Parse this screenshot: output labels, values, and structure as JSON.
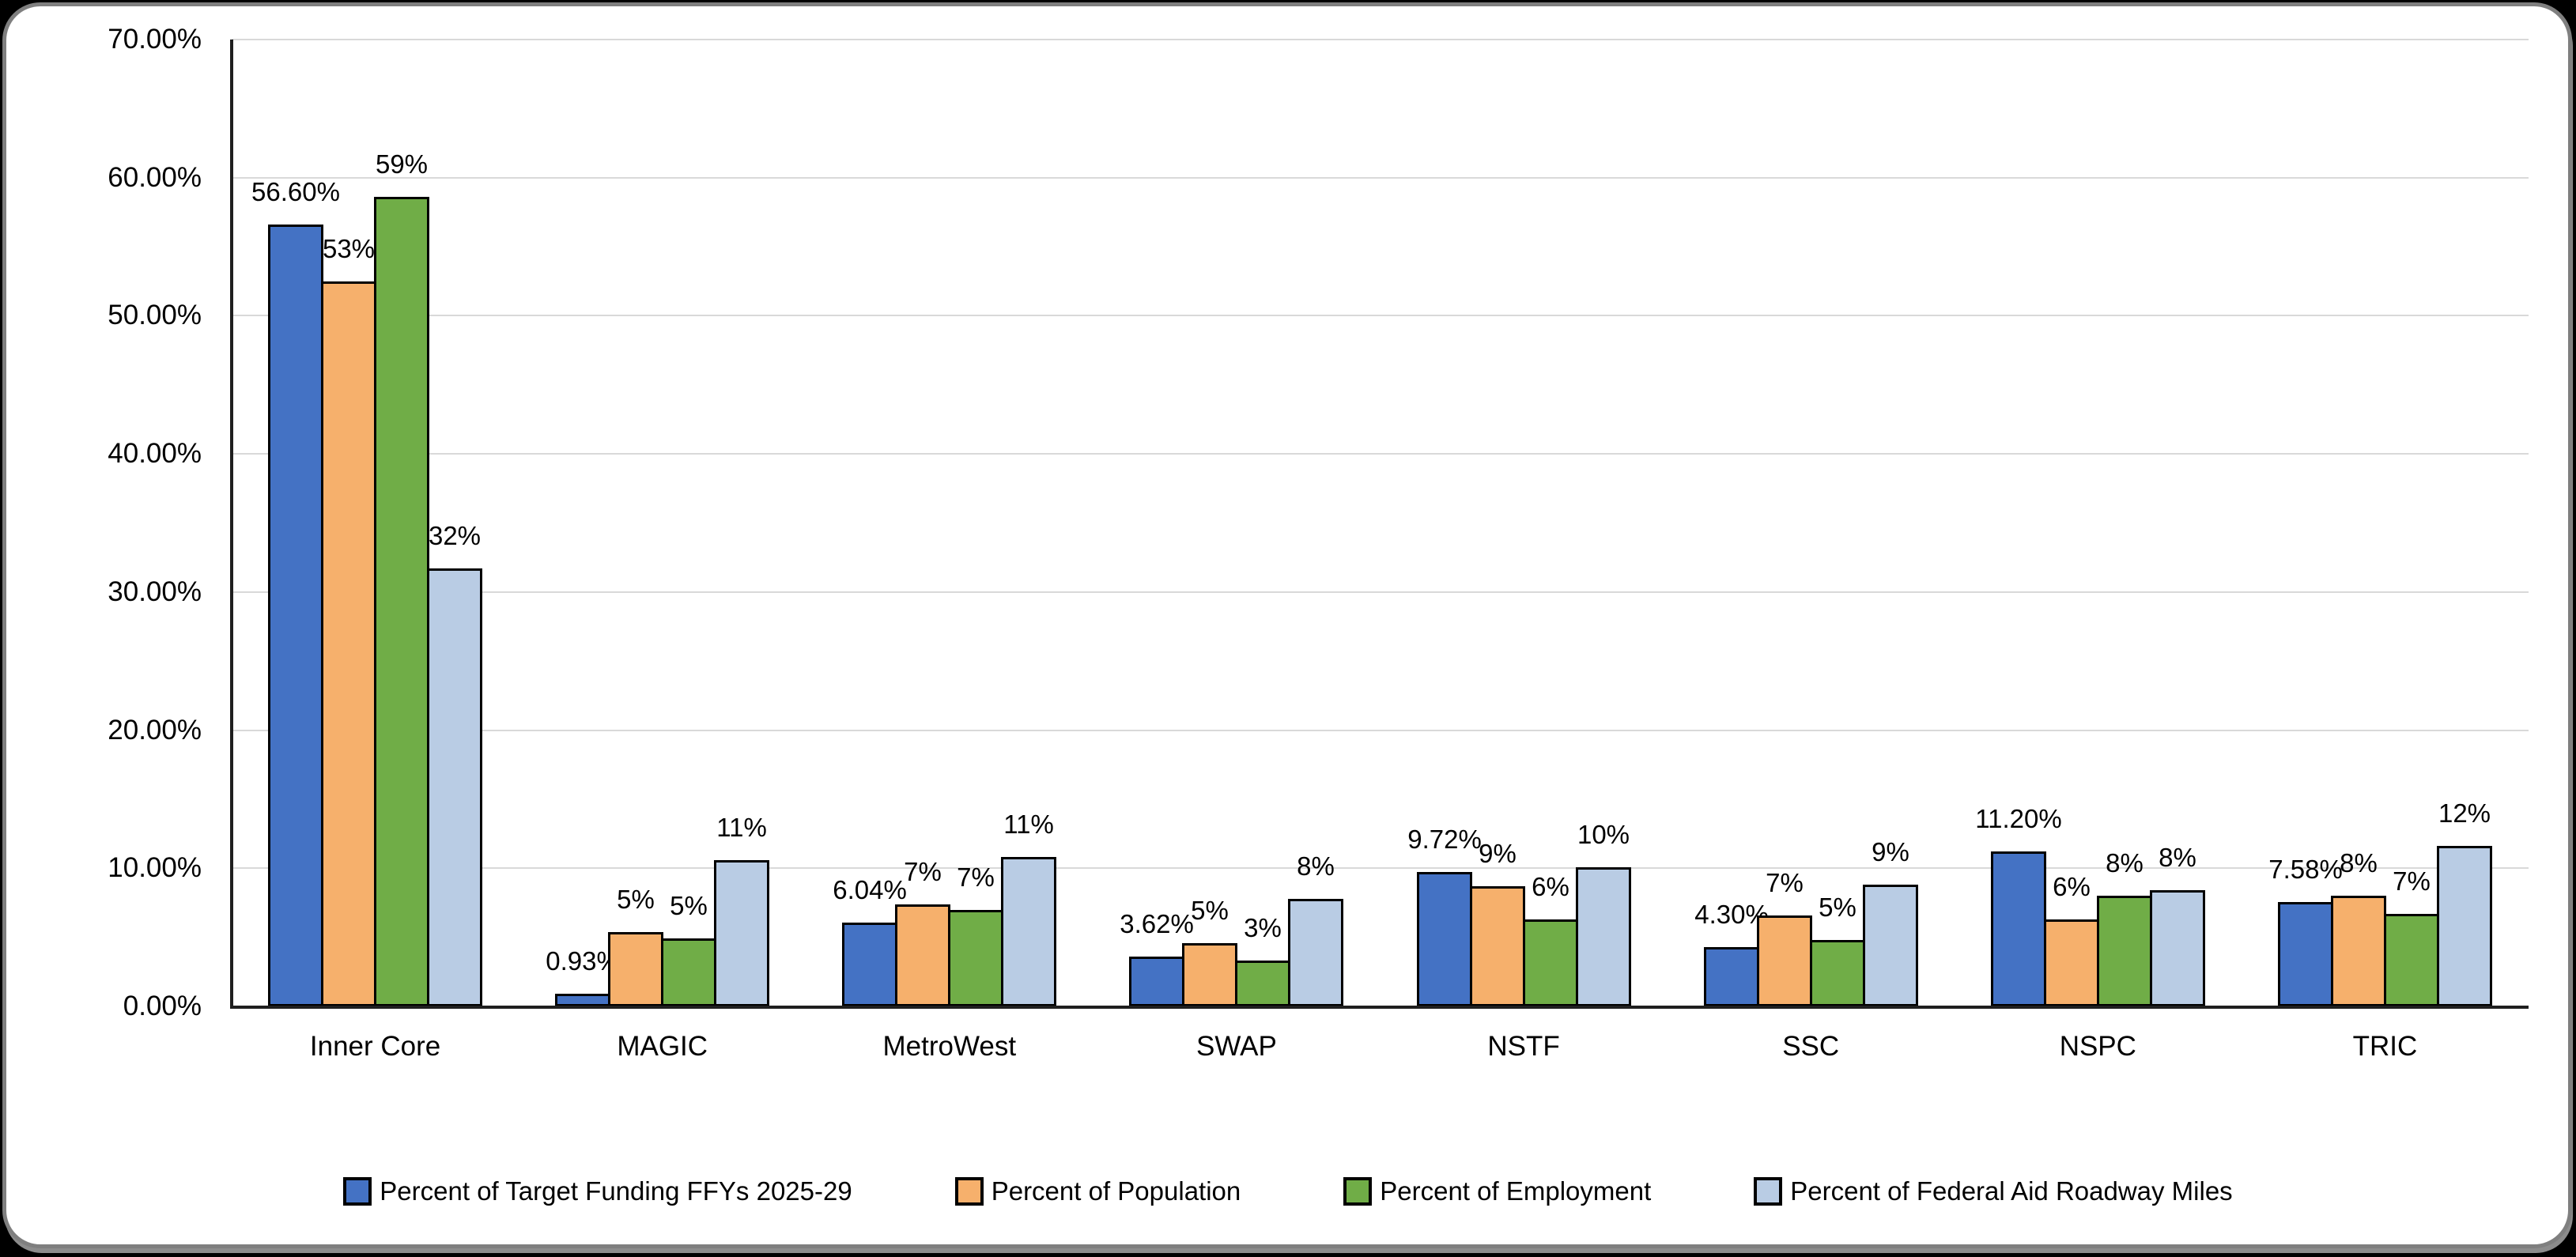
{
  "frame": {
    "page_background": "#000000",
    "chart_background": "#ffffff",
    "border_color": "#7f7f7f"
  },
  "chart_data": {
    "type": "bar",
    "title": "",
    "xlabel": "",
    "ylabel": "",
    "grid": true,
    "legend_position": "bottom",
    "gridline_color": "#d9d9d9",
    "axis_color": "#1f1f1f",
    "bar_border_color": "#000000",
    "categories": [
      "Inner Core",
      "MAGIC",
      "MetroWest",
      "SWAP",
      "NSTF",
      "SSC",
      "NSPC",
      "TRIC"
    ],
    "y_axis": {
      "min": 0,
      "max": 70,
      "step": 10,
      "tick_labels": [
        "0.00%",
        "10.00%",
        "20.00%",
        "30.00%",
        "40.00%",
        "50.00%",
        "60.00%",
        "70.00%"
      ]
    },
    "series": [
      {
        "name": "Percent of Target Funding FFYs 2025-29",
        "color": "#4472C4",
        "values": [
          56.6,
          0.93,
          6.04,
          3.62,
          9.72,
          4.3,
          11.2,
          7.58
        ],
        "labels": [
          "56.60%",
          "0.93%",
          "6.04%",
          "3.62%",
          "9.72%",
          "4.30%",
          "11.20%",
          "7.58%"
        ]
      },
      {
        "name": "Percent of Population",
        "color": "#F6B06C",
        "values": [
          52.5,
          5.4,
          7.4,
          4.6,
          8.7,
          6.6,
          6.3,
          8.0
        ],
        "labels": [
          "53%",
          "5%",
          "7%",
          "5%",
          "9%",
          "7%",
          "6%",
          "8%"
        ]
      },
      {
        "name": "Percent of Employment",
        "color": "#70AD47",
        "values": [
          58.6,
          4.9,
          7.0,
          3.3,
          6.3,
          4.8,
          8.0,
          6.7
        ],
        "labels": [
          "59%",
          "5%",
          "7%",
          "3%",
          "6%",
          "5%",
          "8%",
          "7%"
        ]
      },
      {
        "name": "Percent of Federal Aid Roadway Miles",
        "color": "#B9CCE4",
        "values": [
          31.7,
          10.6,
          10.8,
          7.8,
          10.1,
          8.8,
          8.4,
          11.6
        ],
        "labels": [
          "32%",
          "11%",
          "11%",
          "8%",
          "10%",
          "9%",
          "8%",
          "12%"
        ]
      }
    ]
  }
}
